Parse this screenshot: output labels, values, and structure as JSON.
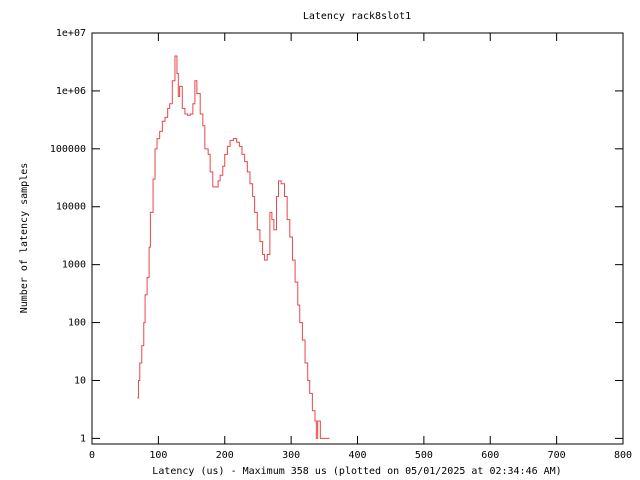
{
  "chart_data": {
    "type": "line",
    "drawstyle": "steps",
    "title": "Latency rack8slot1",
    "x_label": "Latency (us) - Maximum 358 us (plotted on 05/01/2025 at 02:34:46 AM)",
    "y_label": "Number of latency samples",
    "log_y": true,
    "xlim": [
      0,
      800
    ],
    "xticks": [
      0,
      100,
      200,
      300,
      400,
      500,
      600,
      700,
      800
    ],
    "ylim": [
      0.8,
      10000000
    ],
    "yticks": [
      1,
      10,
      100,
      1000,
      10000,
      100000,
      {
        "value": 1000000,
        "label": "1e+06"
      },
      {
        "value": 10000000,
        "label": "1e+07"
      }
    ],
    "series": [
      {
        "name": "rack8slot1",
        "color": "#e8474a",
        "x": [
          68,
          70,
          72,
          75,
          78,
          80,
          83,
          86,
          88,
          92,
          95,
          98,
          102,
          106,
          110,
          114,
          117,
          121,
          125,
          128,
          130,
          132,
          136,
          140,
          144,
          148,
          152,
          155,
          158,
          163,
          167,
          170,
          175,
          178,
          182,
          185,
          190,
          193,
          197,
          200,
          204,
          208,
          213,
          218,
          222,
          226,
          230,
          234,
          238,
          242,
          245,
          249,
          253,
          257,
          260,
          264,
          268,
          271,
          274,
          278,
          281,
          285,
          290,
          294,
          298,
          302,
          306,
          310,
          313,
          317,
          321,
          325,
          328,
          332,
          336,
          338,
          340,
          344,
          346,
          350,
          355,
          358
        ],
        "values": [
          5,
          10,
          20,
          40,
          100,
          300,
          600,
          2000,
          8000,
          30000,
          100000,
          150000,
          200000,
          300000,
          350000,
          500000,
          600000,
          1500000,
          4000000,
          2000000,
          800000,
          1200000,
          500000,
          400000,
          380000,
          400000,
          600000,
          1500000,
          900000,
          400000,
          250000,
          100000,
          80000,
          40000,
          22000,
          22000,
          28000,
          35000,
          50000,
          80000,
          110000,
          140000,
          150000,
          130000,
          110000,
          80000,
          60000,
          40000,
          25000,
          15000,
          8000,
          4000,
          2500,
          1500,
          1200,
          1500,
          8000,
          6000,
          4000,
          15000,
          28000,
          25000,
          15000,
          6000,
          3000,
          1200,
          500,
          200,
          100,
          50,
          20,
          10,
          6,
          3,
          2,
          1,
          2,
          1,
          1,
          1,
          1,
          1
        ]
      }
    ]
  }
}
